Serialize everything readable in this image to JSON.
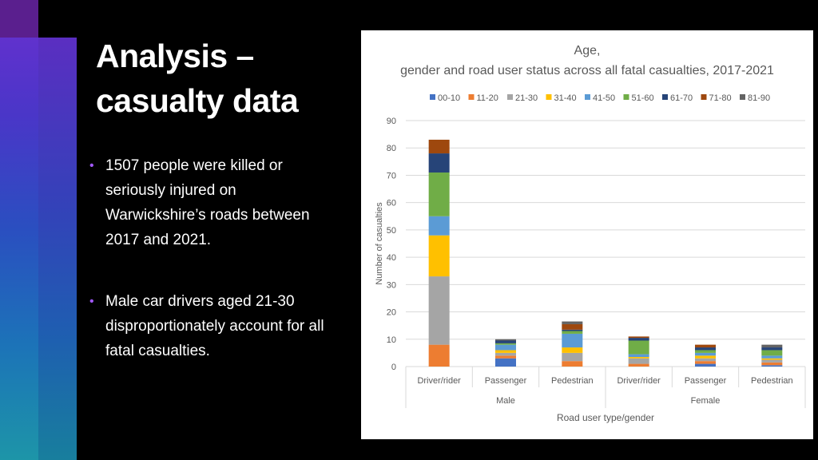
{
  "slide": {
    "title_line1": "Analysis –",
    "title_line2": "casualty data",
    "bullets": [
      "1507 people were killed or seriously injured on Warwickshire’s roads between 2017 and 2021.",
      "Male car drivers aged 21-30 disproportionately account for all fatal casualties."
    ]
  },
  "chart_data": {
    "type": "bar",
    "stacked": true,
    "title": "Age, gender and road user status across all fatal casualties, 2017-2021",
    "xlabel": "Road user type/gender",
    "ylabel": "Number of casualties",
    "ylim": [
      0,
      90
    ],
    "yticks": [
      0,
      10,
      20,
      30,
      40,
      50,
      60,
      70,
      80,
      90
    ],
    "grid": true,
    "legend_position": "top",
    "categories": [
      "Driver/rider",
      "Passenger",
      "Pedestrian",
      "Driver/rider",
      "Passenger",
      "Pedestrian"
    ],
    "groups": [
      {
        "label": "Male",
        "span": [
          0,
          2
        ]
      },
      {
        "label": "Female",
        "span": [
          3,
          5
        ]
      }
    ],
    "series": [
      {
        "name": "00-10",
        "color": "#4472C4",
        "values": [
          0,
          3,
          0,
          0,
          1,
          0.5
        ]
      },
      {
        "name": "11-20",
        "color": "#ED7D31",
        "values": [
          8,
          1,
          2,
          1,
          1,
          1
        ]
      },
      {
        "name": "21-30",
        "color": "#A5A5A5",
        "values": [
          25,
          1,
          3,
          2,
          1,
          1
        ]
      },
      {
        "name": "31-40",
        "color": "#FFC000",
        "values": [
          15,
          1,
          2,
          0.5,
          1,
          0.5
        ]
      },
      {
        "name": "41-50",
        "color": "#5B9BD5",
        "values": [
          7,
          2,
          5,
          1,
          1,
          1
        ]
      },
      {
        "name": "51-60",
        "color": "#70AD47",
        "values": [
          16,
          0.5,
          1,
          5,
          1,
          2
        ]
      },
      {
        "name": "61-70",
        "color": "#264478",
        "values": [
          7,
          1,
          0.5,
          1,
          1,
          1
        ]
      },
      {
        "name": "71-80",
        "color": "#9E480E",
        "values": [
          5,
          0,
          2,
          0.5,
          1,
          0
        ]
      },
      {
        "name": "81-90",
        "color": "#636363",
        "values": [
          0,
          0.5,
          1,
          0,
          0,
          1
        ]
      }
    ]
  }
}
